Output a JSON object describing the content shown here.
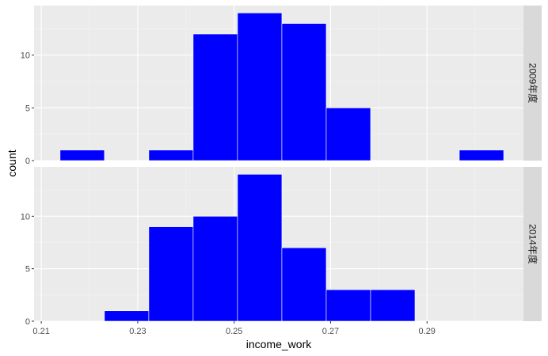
{
  "chart_data": {
    "type": "bar",
    "subtype": "faceted-histogram",
    "xlabel": "income_work",
    "ylabel": "count",
    "x_ticks": [
      0.21,
      0.23,
      0.25,
      0.27,
      0.29
    ],
    "xlim": [
      0.2085,
      0.31
    ],
    "bin_width": 0.0092,
    "bar_fill": "#0000ff",
    "bar_outline": "#ffffff",
    "panel_background": "#ebebeb",
    "strip_background": "#d9d9d9",
    "grid": true,
    "facet_direction": "rows",
    "facets": [
      {
        "label": "2009年度",
        "y_ticks": [
          0,
          5,
          10
        ],
        "ylim": [
          0,
          14.7
        ],
        "bins": [
          {
            "x0": 0.2139,
            "x1": 0.2231,
            "count": 1
          },
          {
            "x0": 0.2323,
            "x1": 0.2415,
            "count": 1
          },
          {
            "x0": 0.2415,
            "x1": 0.2507,
            "count": 12
          },
          {
            "x0": 0.2507,
            "x1": 0.2599,
            "count": 14
          },
          {
            "x0": 0.2599,
            "x1": 0.2691,
            "count": 13
          },
          {
            "x0": 0.2691,
            "x1": 0.2783,
            "count": 5
          },
          {
            "x0": 0.2967,
            "x1": 0.3059,
            "count": 1
          }
        ]
      },
      {
        "label": "2014年度",
        "y_ticks": [
          0,
          5,
          10
        ],
        "ylim": [
          0,
          14.7
        ],
        "bins": [
          {
            "x0": 0.2231,
            "x1": 0.2323,
            "count": 1
          },
          {
            "x0": 0.2323,
            "x1": 0.2415,
            "count": 9
          },
          {
            "x0": 0.2415,
            "x1": 0.2507,
            "count": 10
          },
          {
            "x0": 0.2507,
            "x1": 0.2599,
            "count": 14
          },
          {
            "x0": 0.2599,
            "x1": 0.2691,
            "count": 7
          },
          {
            "x0": 0.2691,
            "x1": 0.2783,
            "count": 3
          },
          {
            "x0": 0.2783,
            "x1": 0.2875,
            "count": 3
          }
        ]
      }
    ]
  }
}
